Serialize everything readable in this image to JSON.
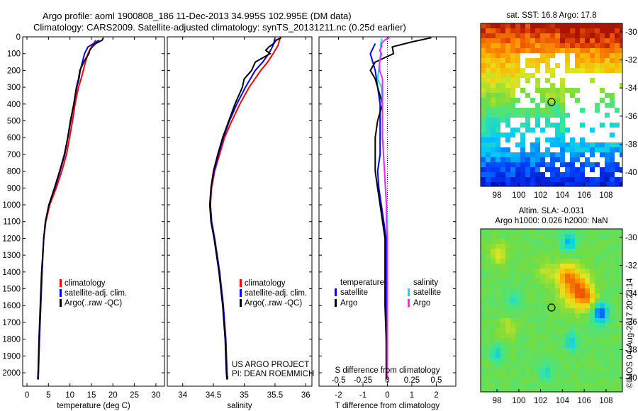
{
  "title_line1": "Argo profile: aoml 1900808_186 11-Dec-2013 34.995S 102.995E (DM data)",
  "title_line2": "Climatology: CARS2009. Satellite-adjusted climatology: synTS_20131211.nc (0.25d earlier)",
  "colors": {
    "climatology": "#ff0000",
    "satellite": "#0000ff",
    "argo": "#000000",
    "s_satellite": "#00e0e8",
    "s_argo": "#ff22ff"
  },
  "project_text_1": "US ARGO PROJECT",
  "project_text_2": "PI: DEAN ROEMMICH",
  "imos_stamp": "©IMOS 04-Aug-2017 20:23:14",
  "chart_data": [
    {
      "type": "line",
      "xlabel": "temperature (deg C)",
      "ylabel": "",
      "xlim": [
        -1,
        32
      ],
      "ylim": [
        2080,
        0
      ],
      "xticks": [
        0,
        5,
        10,
        15,
        20,
        25,
        30
      ],
      "yticks": [
        0,
        100,
        200,
        300,
        400,
        500,
        600,
        700,
        800,
        900,
        1000,
        1100,
        1200,
        1300,
        1400,
        1500,
        1600,
        1700,
        1800,
        1900,
        2000
      ],
      "legend": [
        "climatology",
        "satellite-adj. clim.",
        "Argo(..raw -QC)"
      ],
      "series": [
        {
          "name": "climatology",
          "color": "#ff0000",
          "depth": [
            20,
            60,
            100,
            150,
            200,
            250,
            300,
            400,
            500,
            600,
            700,
            800,
            900,
            1000,
            1100,
            1200,
            1400,
            1600,
            1800,
            2000,
            2040
          ],
          "values": [
            16.0,
            15.0,
            14.2,
            13.6,
            13.1,
            12.6,
            12.0,
            11.2,
            10.6,
            9.9,
            9.2,
            8.1,
            6.8,
            5.3,
            4.4,
            3.9,
            3.5,
            3.2,
            2.9,
            2.7,
            2.6
          ]
        },
        {
          "name": "satellite-adj. clim.",
          "color": "#0000ff",
          "depth": [
            20,
            60,
            100,
            150,
            200,
            250,
            300,
            400,
            500,
            600,
            700,
            800,
            900,
            1000,
            1100,
            1200,
            1400,
            1600,
            1800,
            2000,
            2040
          ],
          "values": [
            16.8,
            14.2,
            13.4,
            12.9,
            12.4,
            12.1,
            11.6,
            10.9,
            10.2,
            9.5,
            8.8,
            7.7,
            6.5,
            5.1,
            4.3,
            3.9,
            3.5,
            3.2,
            2.9,
            2.6,
            2.6
          ]
        },
        {
          "name": "Argo(..raw -QC)",
          "color": "#000000",
          "depth": [
            5,
            20,
            40,
            60,
            80,
            100,
            150,
            200,
            250,
            300,
            400,
            500,
            600,
            700,
            800,
            900,
            1000,
            1100,
            1200,
            1400,
            1600,
            1800,
            2000,
            2040
          ],
          "values": [
            17.8,
            17.5,
            16.0,
            15.2,
            14.6,
            14.4,
            13.2,
            12.3,
            12.0,
            11.5,
            10.9,
            10.1,
            9.5,
            8.7,
            7.6,
            6.4,
            5.1,
            4.3,
            3.9,
            3.4,
            3.1,
            2.8,
            2.6,
            2.5
          ]
        }
      ]
    },
    {
      "type": "line",
      "xlabel": "salinity",
      "ylabel": "",
      "xlim": [
        33.75,
        36.1
      ],
      "ylim": [
        2080,
        0
      ],
      "xticks": [
        34,
        34.5,
        35,
        35.5,
        36
      ],
      "yticks": [
        0,
        100,
        200,
        300,
        400,
        500,
        600,
        700,
        800,
        900,
        1000,
        1100,
        1200,
        1300,
        1400,
        1500,
        1600,
        1700,
        1800,
        1900,
        2000
      ],
      "legend": [
        "climatology",
        "satellite-adj. clim.",
        "Argo(..raw -QC)"
      ],
      "series": [
        {
          "name": "climatology",
          "color": "#ff0000",
          "depth": [
            10,
            50,
            100,
            150,
            200,
            300,
            400,
            500,
            600,
            700,
            800,
            900,
            1000,
            1100,
            1200,
            1400,
            1600,
            1800,
            2000,
            2040
          ],
          "values": [
            35.58,
            35.55,
            35.47,
            35.38,
            35.27,
            35.08,
            34.93,
            34.8,
            34.68,
            34.6,
            34.52,
            34.47,
            34.45,
            34.47,
            34.52,
            34.6,
            34.66,
            34.7,
            34.72,
            34.73
          ]
        },
        {
          "name": "satellite-adj. clim.",
          "color": "#0000ff",
          "depth": [
            10,
            50,
            100,
            150,
            200,
            300,
            400,
            500,
            600,
            700,
            800,
            900,
            1000,
            1100,
            1200,
            1400,
            1600,
            1800,
            2000,
            2040
          ],
          "values": [
            35.5,
            35.47,
            35.4,
            35.3,
            35.18,
            35.02,
            34.88,
            34.76,
            34.66,
            34.58,
            34.51,
            34.46,
            34.45,
            34.47,
            34.52,
            34.6,
            34.66,
            34.7,
            34.72,
            34.73
          ]
        },
        {
          "name": "Argo(..raw -QC)",
          "color": "#000000",
          "depth": [
            5,
            20,
            40,
            60,
            80,
            100,
            150,
            200,
            250,
            300,
            400,
            500,
            600,
            700,
            800,
            900,
            1000,
            1100,
            1200,
            1400,
            1600,
            1800,
            2000,
            2040
          ],
          "values": [
            35.6,
            35.52,
            35.48,
            35.4,
            35.35,
            35.42,
            35.18,
            35.12,
            35.0,
            34.97,
            34.85,
            34.75,
            34.65,
            34.57,
            34.5,
            34.46,
            34.44,
            34.46,
            34.51,
            34.59,
            34.65,
            34.69,
            34.71,
            34.72
          ]
        }
      ]
    },
    {
      "type": "line",
      "xlabel": "T difference from climatology",
      "xlabel2": "S difference from climatology",
      "ylabel": "",
      "xlim": [
        -2.8,
        2.8
      ],
      "ylim": [
        2080,
        0
      ],
      "xticks": [
        -2,
        -1,
        0,
        1,
        2
      ],
      "xticks2": [
        -0.5,
        -0.25,
        0,
        0.25,
        0.5
      ],
      "xticks2_labels": [
        "-0.5",
        "-0.25",
        "0",
        "0.25",
        "0.5"
      ],
      "yticks": [
        0,
        100,
        200,
        300,
        400,
        500,
        600,
        700,
        800,
        900,
        1000,
        1100,
        1200,
        1300,
        1400,
        1500,
        1600,
        1700,
        1800,
        1900,
        2000
      ],
      "legend_temperature_title": "temperature",
      "legend_salinity_title": "salinity",
      "legend": [
        "satellite",
        "Argo",
        "satellite",
        "Argo"
      ],
      "series": [
        {
          "name": "satellite",
          "group": "temperature",
          "color": "#0000ff",
          "depth": [
            40,
            100,
            200,
            300,
            400,
            500,
            600,
            700,
            800,
            900,
            1000,
            1100,
            1200,
            1400,
            1600,
            1800,
            2000
          ],
          "values": [
            -0.5,
            -0.7,
            -0.5,
            -0.4,
            -0.3,
            -0.3,
            -0.3,
            -0.3,
            -0.4,
            -0.35,
            -0.25,
            -0.15,
            -0.05,
            -0.05,
            -0.05,
            -0.05,
            0.0
          ]
        },
        {
          "name": "Argo",
          "group": "temperature",
          "color": "#000000",
          "depth": [
            5,
            30,
            60,
            100,
            150,
            200,
            250,
            300,
            350,
            400,
            500,
            600,
            700,
            800,
            900,
            1000,
            1100,
            1200,
            1400,
            1600,
            1800,
            2000,
            2040
          ],
          "values": [
            1.8,
            1.0,
            0.2,
            0.25,
            -0.5,
            -0.7,
            -0.5,
            -0.4,
            -0.3,
            -0.2,
            -0.4,
            -0.5,
            -0.5,
            -0.5,
            -0.4,
            -0.3,
            -0.2,
            -0.1,
            -0.1,
            -0.1,
            -0.05,
            -0.05,
            -0.05
          ]
        },
        {
          "name": "satellite",
          "group": "salinity",
          "color": "#00e0e8",
          "depth": [
            10,
            50,
            100,
            150,
            200,
            250,
            300,
            400,
            500,
            600,
            700,
            800,
            900,
            1000,
            1100,
            1200,
            1400,
            1600,
            1800,
            2000,
            2040
          ],
          "values": [
            -0.06,
            -0.07,
            -0.07,
            -0.08,
            -0.09,
            -0.1,
            -0.06,
            -0.05,
            -0.05,
            -0.05,
            -0.04,
            -0.03,
            -0.02,
            -0.01,
            0.0,
            0.0,
            0.0,
            0.0,
            0.0,
            0.0,
            0.0
          ]
        },
        {
          "name": "Argo",
          "group": "salinity",
          "color": "#ff22ff",
          "depth": [
            5,
            20,
            40,
            60,
            80,
            100,
            150,
            200,
            250,
            300,
            400,
            500,
            600,
            700,
            800,
            900,
            1000,
            1100,
            1200,
            1400,
            1600,
            1800,
            2000,
            2040
          ],
          "values": [
            0.02,
            -0.03,
            -0.06,
            -0.06,
            -0.08,
            -0.06,
            -0.08,
            -0.08,
            -0.05,
            -0.05,
            -0.05,
            -0.05,
            -0.05,
            -0.04,
            -0.03,
            -0.02,
            -0.01,
            -0.01,
            0.0,
            0.0,
            0.0,
            0.0,
            0.0,
            0.0
          ]
        }
      ]
    },
    {
      "type": "heatmap",
      "title": "sat. SST: 16.8 Argo: 17.8",
      "xticks": [
        98,
        100,
        102,
        104,
        106,
        108
      ],
      "yticks": [
        -30,
        -32,
        -34,
        -36,
        -38,
        -40
      ],
      "xlim": [
        96.5,
        109.5
      ],
      "ylim": [
        -41,
        -29.4
      ],
      "marker": [
        103.0,
        -35.0
      ]
    },
    {
      "type": "heatmap",
      "title": "Altim. SLA: -0.031",
      "title2": "Argo h1000: 0.026 h2000: NaN",
      "xticks": [
        98,
        100,
        102,
        104,
        106,
        108
      ],
      "yticks": [
        -30,
        -32,
        -34,
        -36,
        -38,
        -40
      ],
      "xlim": [
        96.5,
        109.5
      ],
      "ylim": [
        -41,
        -29.4
      ],
      "marker": [
        103.0,
        -35.0
      ]
    }
  ]
}
